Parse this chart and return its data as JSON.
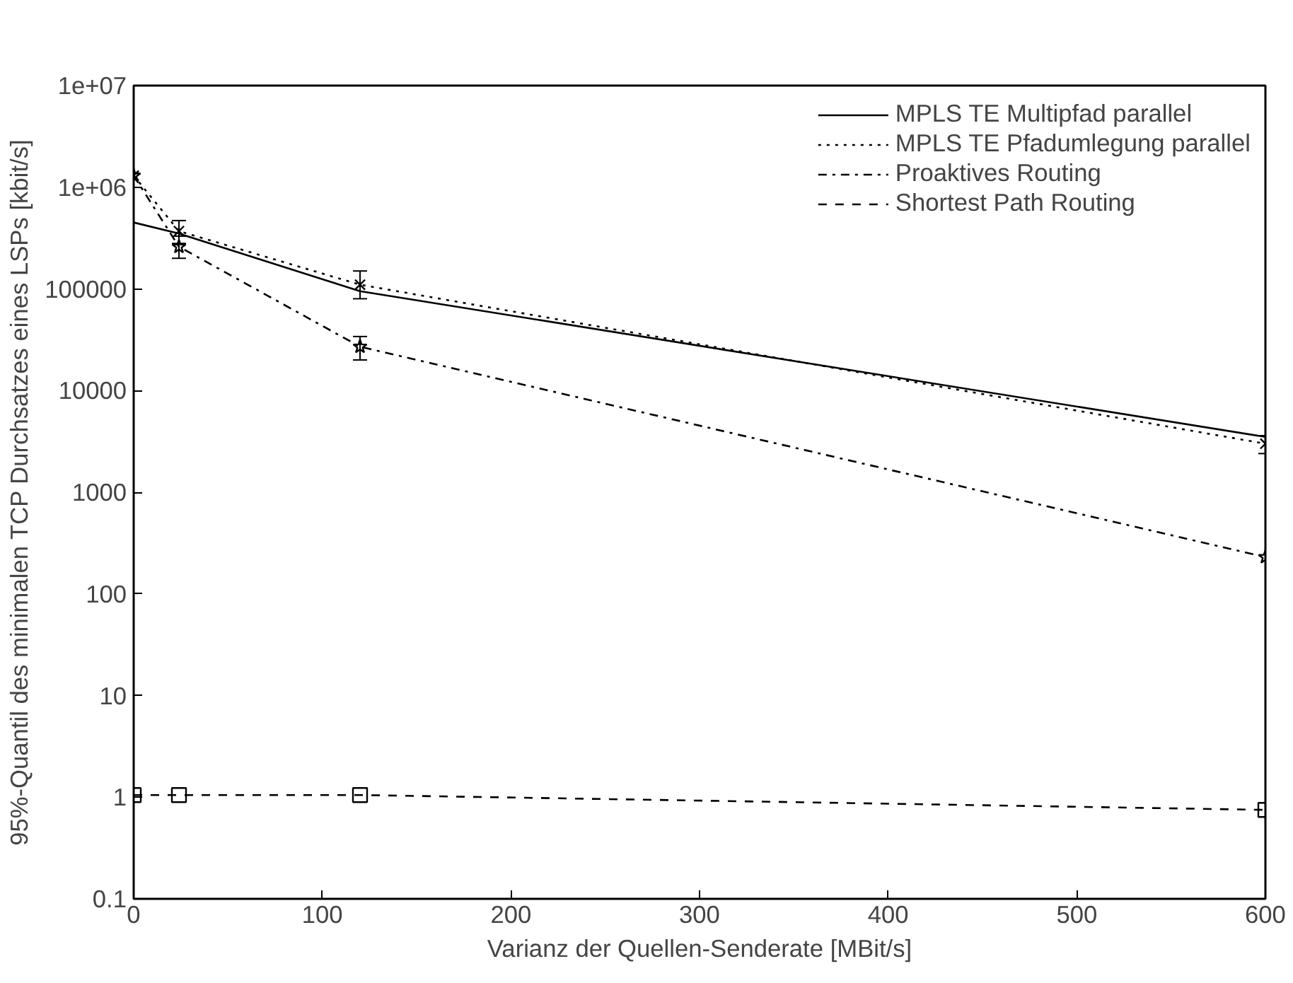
{
  "chart_data": {
    "type": "line",
    "xlabel": "Varianz der Quellen-Senderate [MBit/s]",
    "ylabel": "95%-Quantil des minimalen TCP Durchsatzes eines LSPs [kbit/s]",
    "x": [
      0,
      24,
      120,
      600
    ],
    "series": [
      {
        "name": "MPLS TE Multipfad parallel",
        "color": "#000000",
        "line_style": "solid",
        "marker": "none",
        "values": [
          450000,
          350000,
          95000,
          3500
        ]
      },
      {
        "name": "MPLS TE Pfadumlegung parallel",
        "color": "#000000",
        "line_style": "dotted",
        "marker": "cross",
        "values": [
          1300000,
          370000,
          110000,
          3000
        ],
        "errors": [
          null,
          [
            280000,
            470000
          ],
          [
            80000,
            150000
          ],
          [
            2400,
            3600
          ]
        ]
      },
      {
        "name": "Proaktives Routing",
        "color": "#000000",
        "line_style": "dashdot",
        "marker": "star",
        "values": [
          1300000,
          260000,
          27000,
          230
        ],
        "errors": [
          null,
          [
            200000,
            330000
          ],
          [
            20000,
            34000
          ],
          null
        ]
      },
      {
        "name": "Shortest Path Routing",
        "color": "#000000",
        "line_style": "dashed",
        "marker": "square",
        "values": [
          1.05,
          1.05,
          1.05,
          0.75
        ]
      }
    ],
    "log": "y",
    "xlim": [
      0,
      600
    ],
    "xticks": [
      0,
      100,
      200,
      300,
      400,
      500,
      600
    ],
    "ylim": [
      0.1,
      10000000
    ],
    "yticks": [
      0.1,
      1,
      10,
      100,
      1000,
      10000,
      100000,
      {
        "value": 1000000,
        "label": "1e+06"
      },
      {
        "value": 10000000,
        "label": "1e+07"
      }
    ],
    "grid": false,
    "legend": "top right"
  }
}
